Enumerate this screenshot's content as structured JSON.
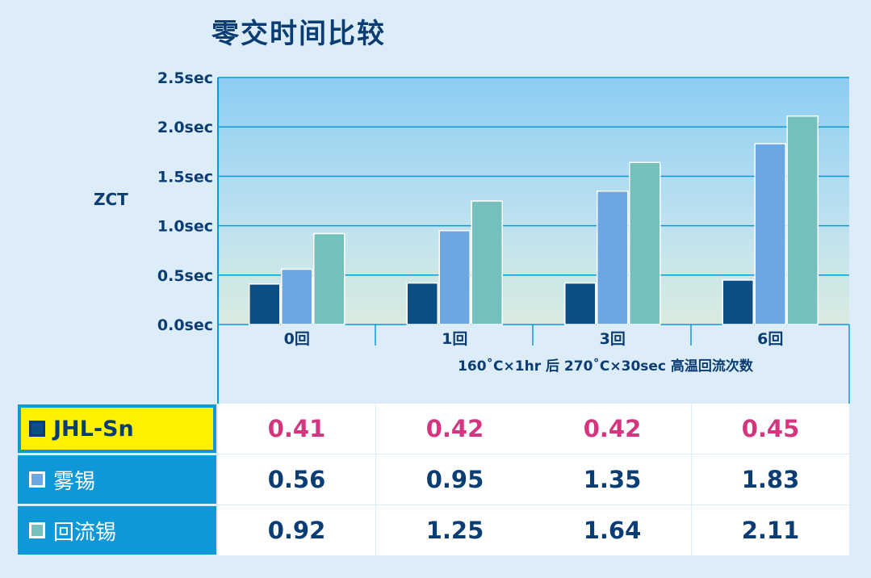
{
  "title": "零交时间比较",
  "chart_data": {
    "type": "bar",
    "ylabel": "ZCT",
    "xlabel": "160˚C×1hr 后 270˚C×30sec 高温回流次数",
    "categories": [
      "0回",
      "1回",
      "3回",
      "6回"
    ],
    "y_ticks": [
      "0.0sec",
      "0.5sec",
      "1.0sec",
      "1.5sec",
      "2.0sec",
      "2.5sec"
    ],
    "ylim": [
      0,
      2.5
    ],
    "grid": true,
    "series": [
      {
        "name": "JHL-Sn",
        "color": "#0b4f86",
        "values": [
          0.41,
          0.42,
          0.42,
          0.45
        ]
      },
      {
        "name": "雾锡",
        "color": "#6ba7e3",
        "values": [
          0.56,
          0.95,
          1.35,
          1.83
        ]
      },
      {
        "name": "回流锡",
        "color": "#74c0bc",
        "values": [
          0.92,
          1.25,
          1.64,
          2.11
        ]
      }
    ]
  },
  "table": {
    "rows": [
      {
        "label": "JHL-Sn",
        "values": [
          "0.41",
          "0.42",
          "0.42",
          "0.45"
        ]
      },
      {
        "label": "雾锡",
        "values": [
          "0.56",
          "0.95",
          "1.35",
          "1.83"
        ]
      },
      {
        "label": "回流锡",
        "values": [
          "0.92",
          "1.25",
          "1.64",
          "2.11"
        ]
      }
    ]
  },
  "colors": {
    "title": "#0b3d75",
    "highlight": "#fff200",
    "legend_bg": "#0f98d8",
    "value_jhl": "#d4357f"
  }
}
